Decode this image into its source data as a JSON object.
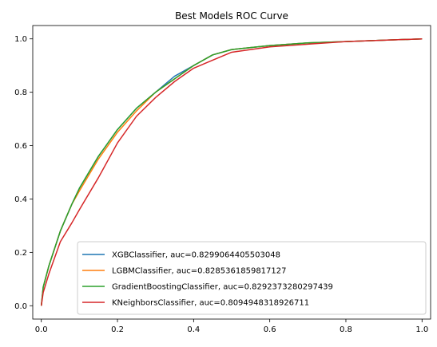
{
  "chart_data": {
    "type": "line",
    "title": "Best Models ROC Curve",
    "xlabel": "",
    "ylabel": "",
    "xlim": [
      -0.0225,
      1.0225
    ],
    "ylim": [
      -0.05,
      1.05
    ],
    "x_ticks": [
      "0.0",
      "0.2",
      "0.4",
      "0.6",
      "0.8",
      "1.0"
    ],
    "y_ticks": [
      "0.0",
      "0.2",
      "0.4",
      "0.6",
      "0.8",
      "1.0"
    ],
    "grid": false,
    "legend_position": "lower-right",
    "series": [
      {
        "name": "XGBClassifier, auc=0.8299064405503048",
        "color": "#1f77b4",
        "x": [
          0.0,
          0.005,
          0.02,
          0.05,
          0.08,
          0.1,
          0.15,
          0.2,
          0.25,
          0.3,
          0.35,
          0.4,
          0.45,
          0.5,
          0.6,
          0.7,
          0.8,
          0.9,
          1.0
        ],
        "y": [
          0.0,
          0.07,
          0.15,
          0.28,
          0.38,
          0.44,
          0.56,
          0.66,
          0.74,
          0.8,
          0.86,
          0.9,
          0.94,
          0.96,
          0.975,
          0.985,
          0.99,
          0.995,
          1.0
        ]
      },
      {
        "name": "LGBMClassifier, auc=0.8285361859817127",
        "color": "#ff7f0e",
        "x": [
          0.0,
          0.005,
          0.02,
          0.05,
          0.08,
          0.1,
          0.15,
          0.2,
          0.25,
          0.3,
          0.35,
          0.4,
          0.45,
          0.5,
          0.6,
          0.7,
          0.8,
          0.9,
          1.0
        ],
        "y": [
          0.0,
          0.07,
          0.15,
          0.28,
          0.38,
          0.43,
          0.55,
          0.65,
          0.73,
          0.8,
          0.85,
          0.9,
          0.94,
          0.96,
          0.975,
          0.985,
          0.99,
          0.995,
          1.0
        ]
      },
      {
        "name": "GradientBoostingClassifier, auc=0.8292373280297439",
        "color": "#2ca02c",
        "x": [
          0.0,
          0.005,
          0.02,
          0.05,
          0.08,
          0.1,
          0.15,
          0.2,
          0.25,
          0.3,
          0.35,
          0.4,
          0.45,
          0.5,
          0.6,
          0.7,
          0.8,
          0.9,
          1.0
        ],
        "y": [
          0.0,
          0.07,
          0.15,
          0.28,
          0.38,
          0.44,
          0.56,
          0.66,
          0.74,
          0.8,
          0.85,
          0.9,
          0.94,
          0.96,
          0.975,
          0.985,
          0.99,
          0.995,
          1.0
        ]
      },
      {
        "name": "KNeighborsClassifier, auc=0.8094948318926711",
        "color": "#d62728",
        "x": [
          0.0,
          0.005,
          0.02,
          0.05,
          0.08,
          0.1,
          0.15,
          0.2,
          0.25,
          0.3,
          0.35,
          0.4,
          0.45,
          0.5,
          0.6,
          0.7,
          0.8,
          0.9,
          1.0
        ],
        "y": [
          0.0,
          0.05,
          0.12,
          0.24,
          0.31,
          0.36,
          0.48,
          0.61,
          0.71,
          0.78,
          0.84,
          0.89,
          0.92,
          0.95,
          0.97,
          0.98,
          0.99,
          0.995,
          1.0
        ]
      }
    ]
  }
}
